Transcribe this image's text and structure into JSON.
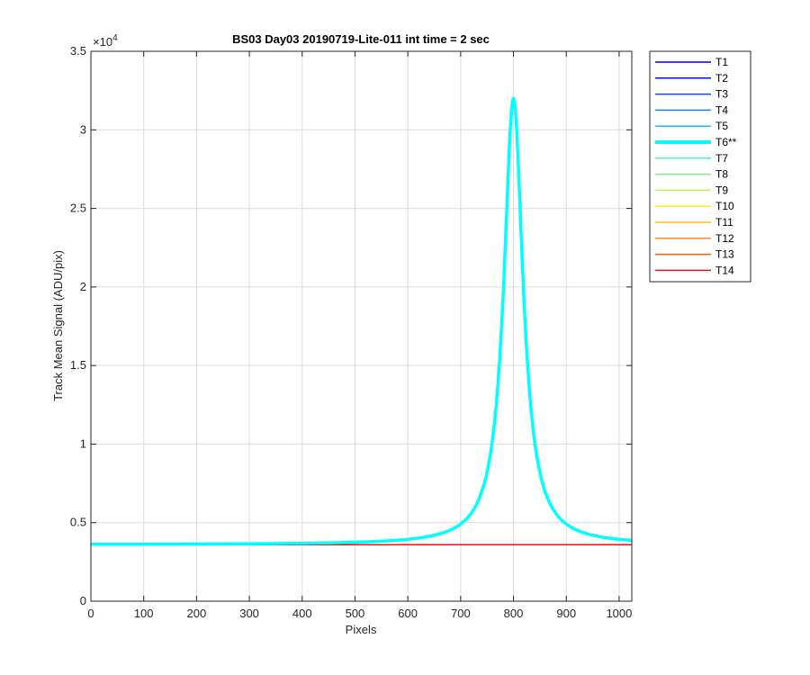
{
  "chart_data": {
    "type": "line",
    "title": "BS03 Day03 20190719-Lite-011 int time = 2 sec",
    "xlabel": "Pixels",
    "ylabel": "Track Mean Signal (ADU/pix)",
    "xlim": [
      0,
      1024
    ],
    "ylim": [
      0,
      35000
    ],
    "xticks": [
      0,
      100,
      200,
      300,
      400,
      500,
      600,
      700,
      800,
      900,
      1000
    ],
    "yticks": [
      0,
      5000,
      10000,
      15000,
      20000,
      25000,
      30000,
      35000
    ],
    "ytick_labels": [
      "0",
      "0.5",
      "1",
      "1.5",
      "2",
      "2.5",
      "3",
      "3.5"
    ],
    "y_exponent_label": "×10",
    "y_exponent_power": "4",
    "grid": true,
    "legend_position": "outside-right",
    "series": [
      {
        "name": "T1",
        "color": "#0000cc",
        "baseline": 3600,
        "highlight": false
      },
      {
        "name": "T2",
        "color": "#0011ee",
        "baseline": 3600,
        "highlight": false
      },
      {
        "name": "T3",
        "color": "#1144ff",
        "baseline": 3600,
        "highlight": false
      },
      {
        "name": "T4",
        "color": "#1a80ff",
        "baseline": 3600,
        "highlight": false
      },
      {
        "name": "T5",
        "color": "#11bbff",
        "baseline": 3600,
        "highlight": false
      },
      {
        "name": "T6**",
        "color": "#00ffff",
        "baseline": 3600,
        "highlight": true,
        "peak": {
          "center": 800,
          "amplitude": 28400,
          "width": 22
        }
      },
      {
        "name": "T7",
        "color": "#44f5c0",
        "baseline": 3600,
        "highlight": false
      },
      {
        "name": "T8",
        "color": "#77f08a",
        "baseline": 3600,
        "highlight": false
      },
      {
        "name": "T9",
        "color": "#b8f555",
        "baseline": 3600,
        "highlight": false
      },
      {
        "name": "T10",
        "color": "#ffef1a",
        "baseline": 3600,
        "highlight": false
      },
      {
        "name": "T11",
        "color": "#ffbf1a",
        "baseline": 3600,
        "highlight": false
      },
      {
        "name": "T12",
        "color": "#ff8a1a",
        "baseline": 3600,
        "highlight": false
      },
      {
        "name": "T13",
        "color": "#ff5511",
        "baseline": 3600,
        "highlight": false
      },
      {
        "name": "T14",
        "color": "#ee1111",
        "baseline": 3600,
        "highlight": false
      }
    ]
  }
}
